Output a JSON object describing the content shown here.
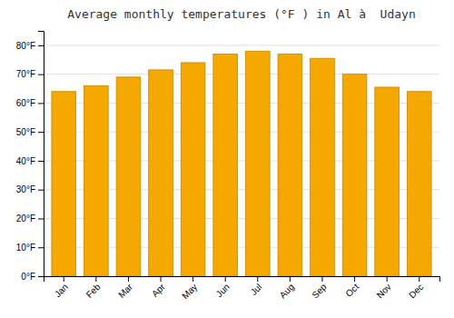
{
  "chart_data": {
    "type": "bar",
    "title": "Average monthly temperatures (°F ) in Al à  Udayn",
    "categories": [
      "Jan",
      "Feb",
      "Mar",
      "Apr",
      "May",
      "Jun",
      "Jul",
      "Aug",
      "Sep",
      "Oct",
      "Nov",
      "Dec"
    ],
    "values": [
      64,
      66,
      69,
      71.5,
      74,
      77,
      78,
      77,
      75.5,
      70,
      65.5,
      64
    ],
    "color": "#F5A800",
    "ylim": [
      0,
      85
    ],
    "yticks": [
      {
        "value": 0,
        "label": "0°F"
      },
      {
        "value": 10,
        "label": "10°F"
      },
      {
        "value": 20,
        "label": "20°F"
      },
      {
        "value": 30,
        "label": "30°F"
      },
      {
        "value": 40,
        "label": "40°F"
      },
      {
        "value": 50,
        "label": "50°F"
      },
      {
        "value": 60,
        "label": "60°F"
      },
      {
        "value": 70,
        "label": "70°F"
      },
      {
        "value": 80,
        "label": "80°F"
      }
    ],
    "grid": true
  }
}
